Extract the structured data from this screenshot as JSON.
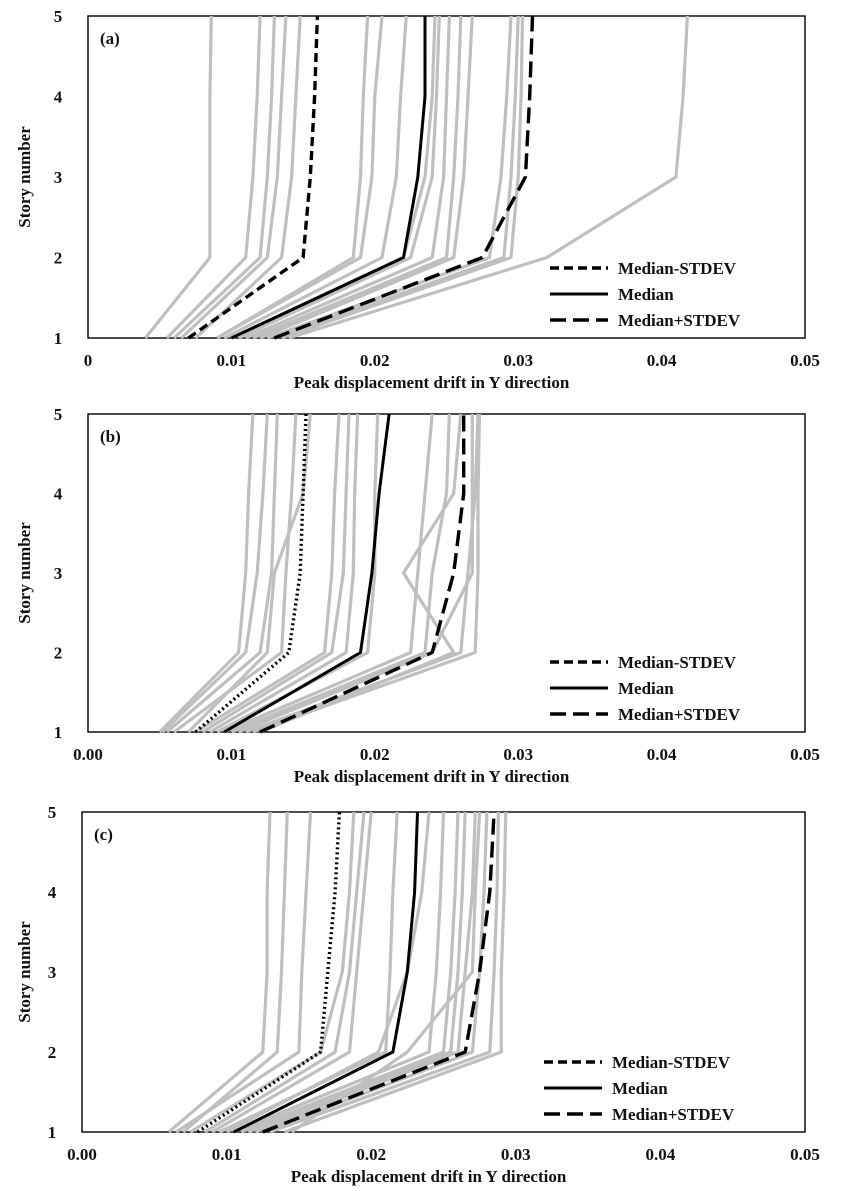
{
  "chart_data": [
    {
      "type": "line",
      "panel_label": "(a)",
      "xlabel": "Peak displacement  drift  in Y direction",
      "ylabel": "Story number",
      "xlim": [
        0,
        0.05
      ],
      "ylim": [
        1,
        5
      ],
      "xticks": [
        "0",
        "0.01",
        "0.02",
        "0.03",
        "0.04",
        "0.05"
      ],
      "yticks": [
        "1",
        "2",
        "3",
        "4",
        "5"
      ],
      "grid": false,
      "legend_placement": "bottom-right",
      "y": [
        1,
        2,
        3,
        4,
        5
      ],
      "records": [
        [
          0.004,
          0.0085,
          0.0085,
          0.0085,
          0.0086
        ],
        [
          0.0055,
          0.011,
          0.0115,
          0.0118,
          0.012
        ],
        [
          0.006,
          0.012,
          0.0125,
          0.0128,
          0.013
        ],
        [
          0.0065,
          0.0125,
          0.0132,
          0.0135,
          0.0138
        ],
        [
          0.0075,
          0.0135,
          0.0142,
          0.0145,
          0.0148
        ],
        [
          0.009,
          0.0185,
          0.019,
          0.0192,
          0.0195
        ],
        [
          0.009,
          0.019,
          0.0198,
          0.02,
          0.0205
        ],
        [
          0.0095,
          0.0205,
          0.0215,
          0.0218,
          0.0222
        ],
        [
          0.01,
          0.022,
          0.0235,
          0.024,
          0.0242
        ],
        [
          0.0105,
          0.0225,
          0.024,
          0.0243,
          0.0245
        ],
        [
          0.011,
          0.024,
          0.0248,
          0.025,
          0.0252
        ],
        [
          0.0115,
          0.025,
          0.0255,
          0.0258,
          0.026
        ],
        [
          0.012,
          0.0255,
          0.0262,
          0.0265,
          0.0268
        ],
        [
          0.0125,
          0.028,
          0.0288,
          0.0292,
          0.0295
        ],
        [
          0.013,
          0.029,
          0.0295,
          0.0298,
          0.03
        ],
        [
          0.0135,
          0.0295,
          0.03,
          0.0302,
          0.0303
        ],
        [
          0.014,
          0.032,
          0.041,
          0.0415,
          0.0418
        ]
      ],
      "series": [
        {
          "name": "Median-STDEV",
          "values": [
            0.007,
            0.015,
            0.0155,
            0.0158,
            0.016
          ]
        },
        {
          "name": "Median",
          "values": [
            0.01,
            0.022,
            0.023,
            0.0235,
            0.0235
          ]
        },
        {
          "name": "Median+STDEV",
          "values": [
            0.013,
            0.0275,
            0.0305,
            0.0308,
            0.031
          ]
        }
      ],
      "line_styles": [
        "short-dash",
        "solid",
        "long-dash"
      ],
      "colors": {
        "records": "#bfbfbf",
        "stats": "#000000"
      }
    },
    {
      "type": "line",
      "panel_label": "(b)",
      "xlabel": "Peak displacement  drift  in Y direction",
      "ylabel": "Story number",
      "xlim": [
        0,
        0.05
      ],
      "ylim": [
        1,
        5
      ],
      "xticks": [
        "0.00",
        "0.01",
        "0.02",
        "0.03",
        "0.04",
        "0.05"
      ],
      "yticks": [
        "1",
        "2",
        "3",
        "4",
        "5"
      ],
      "grid": false,
      "legend_placement": "bottom-right",
      "y": [
        1,
        2,
        3,
        4,
        5
      ],
      "records": [
        [
          0.005,
          0.0105,
          0.011,
          0.0112,
          0.0115
        ],
        [
          0.0052,
          0.011,
          0.0118,
          0.0122,
          0.0125
        ],
        [
          0.0055,
          0.012,
          0.0128,
          0.013,
          0.0132
        ],
        [
          0.006,
          0.0135,
          0.0138,
          0.0142,
          0.0145
        ],
        [
          0.007,
          0.0125,
          0.013,
          0.015,
          0.0155
        ],
        [
          0.0075,
          0.0165,
          0.017,
          0.0172,
          0.0175
        ],
        [
          0.008,
          0.017,
          0.0178,
          0.018,
          0.0182
        ],
        [
          0.0085,
          0.018,
          0.0185,
          0.0186,
          0.0188
        ],
        [
          0.009,
          0.0195,
          0.02,
          0.02,
          0.0202
        ],
        [
          0.0095,
          0.0225,
          0.023,
          0.0235,
          0.024
        ],
        [
          0.01,
          0.0235,
          0.024,
          0.025,
          0.0252
        ],
        [
          0.0105,
          0.024,
          0.0268,
          0.0268,
          0.0268
        ],
        [
          0.011,
          0.026,
          0.0265,
          0.027,
          0.0272
        ],
        [
          0.0115,
          0.027,
          0.0272,
          0.0272,
          0.0273
        ],
        [
          0.012,
          0.0255,
          0.022,
          0.0255,
          0.026
        ]
      ],
      "series": [
        {
          "name": "Median-STDEV",
          "values": [
            0.0075,
            0.014,
            0.0148,
            0.015,
            0.0152
          ]
        },
        {
          "name": "Median",
          "values": [
            0.0095,
            0.019,
            0.0198,
            0.0203,
            0.021
          ]
        },
        {
          "name": "Median+STDEV",
          "values": [
            0.012,
            0.024,
            0.0255,
            0.0262,
            0.0262
          ]
        }
      ],
      "line_styles": [
        "dotted",
        "solid",
        "long-dash"
      ],
      "colors": {
        "records": "#bfbfbf",
        "stats": "#000000"
      }
    },
    {
      "type": "line",
      "panel_label": "(c)",
      "xlabel": "Peak displacement  drift  in Y direction",
      "ylabel": "Story number",
      "xlim": [
        0,
        0.05
      ],
      "ylim": [
        1,
        5
      ],
      "xticks": [
        "0.00",
        "0.01",
        "0.02",
        "0.03",
        "0.04",
        "0.05"
      ],
      "yticks": [
        "1",
        "2",
        "3",
        "4",
        "5"
      ],
      "grid": false,
      "legend_placement": "bottom-right",
      "y": [
        1,
        2,
        3,
        4,
        5
      ],
      "records": [
        [
          0.006,
          0.0125,
          0.0128,
          0.0128,
          0.013
        ],
        [
          0.0065,
          0.015,
          0.0152,
          0.0155,
          0.0158
        ],
        [
          0.007,
          0.0135,
          0.0138,
          0.014,
          0.0142
        ],
        [
          0.0075,
          0.0165,
          0.018,
          0.0185,
          0.0188
        ],
        [
          0.0085,
          0.0175,
          0.0185,
          0.019,
          0.0195
        ],
        [
          0.009,
          0.0185,
          0.019,
          0.0195,
          0.02
        ],
        [
          0.0095,
          0.021,
          0.0213,
          0.0215,
          0.0218
        ],
        [
          0.01,
          0.0205,
          0.0225,
          0.0235,
          0.024
        ],
        [
          0.0105,
          0.024,
          0.0245,
          0.0248,
          0.025
        ],
        [
          0.011,
          0.025,
          0.0255,
          0.0258,
          0.026
        ],
        [
          0.0115,
          0.0255,
          0.026,
          0.0263,
          0.0265
        ],
        [
          0.012,
          0.026,
          0.0265,
          0.027,
          0.0272
        ],
        [
          0.0125,
          0.027,
          0.0275,
          0.0278,
          0.028
        ],
        [
          0.013,
          0.0282,
          0.0285,
          0.0287,
          0.0288
        ],
        [
          0.014,
          0.029,
          0.029,
          0.0292,
          0.0293
        ],
        [
          0.0145,
          0.0225,
          0.027,
          0.0272,
          0.0275
        ]
      ],
      "series": [
        {
          "name": "Median-STDEV",
          "values": [
            0.008,
            0.0165,
            0.017,
            0.0175,
            0.0178
          ]
        },
        {
          "name": "Median",
          "values": [
            0.0105,
            0.0215,
            0.0225,
            0.023,
            0.0232
          ]
        },
        {
          "name": "Median+STDEV",
          "values": [
            0.0125,
            0.0265,
            0.0275,
            0.0282,
            0.0285
          ]
        }
      ],
      "line_styles": [
        "dotted",
        "solid",
        "long-dash"
      ],
      "colors": {
        "records": "#bfbfbf",
        "stats": "#000000"
      }
    }
  ]
}
